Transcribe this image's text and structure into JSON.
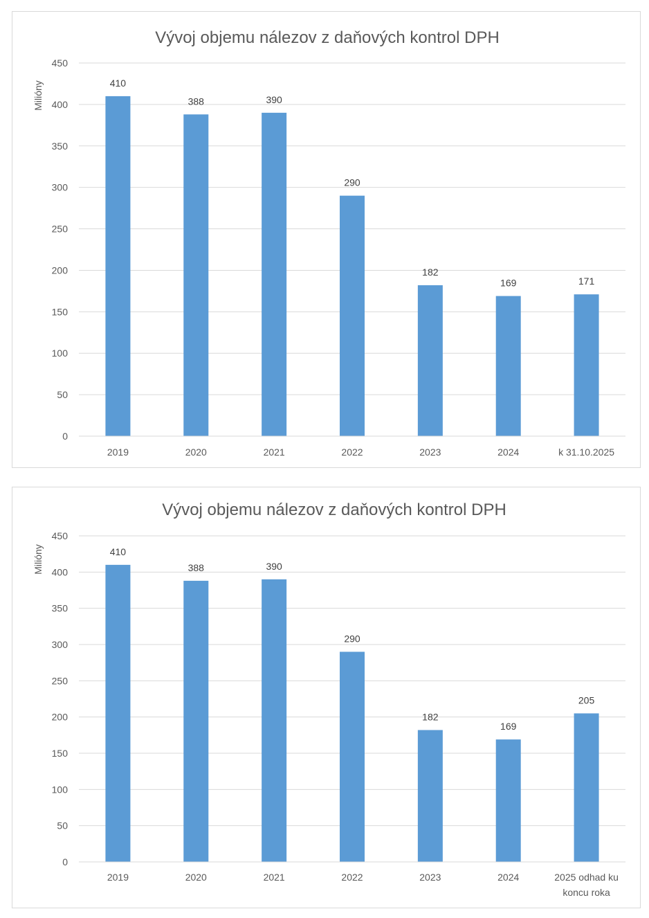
{
  "colors": {
    "bar": "#5b9bd5",
    "grid": "#d9d9d9",
    "text": "#595959"
  },
  "chart_data": [
    {
      "type": "bar",
      "title": "Vývoj objemu nálezov z daňových kontrol DPH",
      "xlabel": "",
      "ylabel": "Milióny",
      "ylim": [
        0,
        450
      ],
      "ytick_step": 50,
      "categories": [
        "2019",
        "2020",
        "2021",
        "2022",
        "2023",
        "2024",
        "k 31.10.2025"
      ],
      "values": [
        410,
        388,
        390,
        290,
        182,
        169,
        171
      ],
      "data_labels": true,
      "grid": true
    },
    {
      "type": "bar",
      "title": "Vývoj objemu nálezov z daňových kontrol DPH",
      "xlabel": "",
      "ylabel": "Milióny",
      "ylim": [
        0,
        450
      ],
      "ytick_step": 50,
      "categories": [
        "2019",
        "2020",
        "2021",
        "2022",
        "2023",
        "2024",
        "2025 odhad ku koncu roka"
      ],
      "values": [
        410,
        388,
        390,
        290,
        182,
        169,
        205
      ],
      "data_labels": true,
      "grid": true
    }
  ]
}
